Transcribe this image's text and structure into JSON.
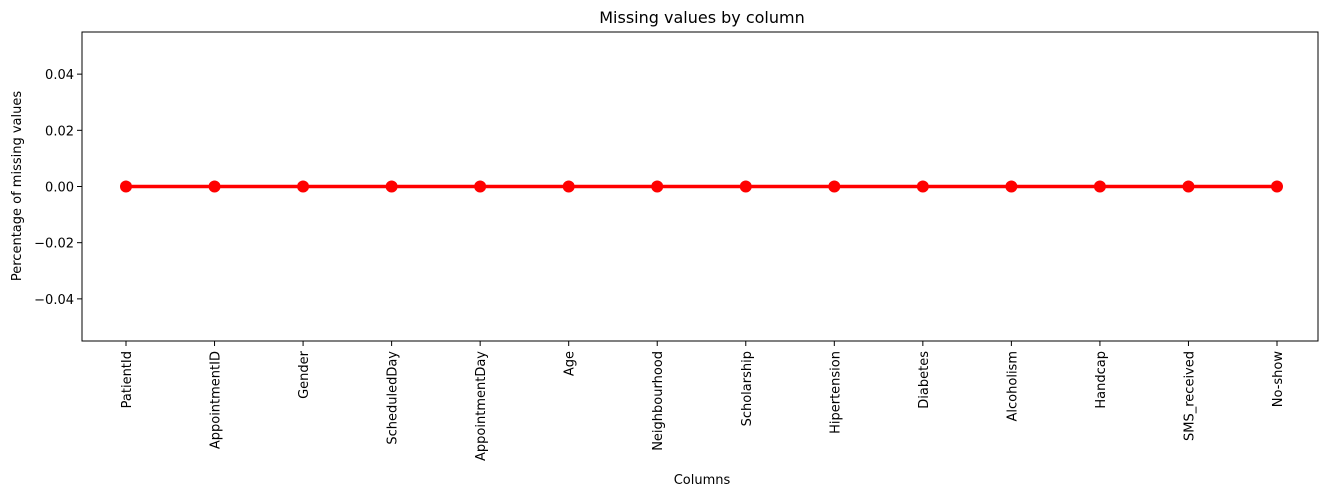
{
  "chart_data": {
    "type": "line",
    "title": "Missing values by column",
    "xlabel": "Columns",
    "ylabel": "Percentage of missing values",
    "categories": [
      "PatientId",
      "AppointmentID",
      "Gender",
      "ScheduledDay",
      "AppointmentDay",
      "Age",
      "Neighbourhood",
      "Scholarship",
      "Hipertension",
      "Diabetes",
      "Alcoholism",
      "Handcap",
      "SMS_received",
      "No-show"
    ],
    "series": [
      {
        "values": [
          0,
          0,
          0,
          0,
          0,
          0,
          0,
          0,
          0,
          0,
          0,
          0,
          0,
          0
        ],
        "color": "#ff0000"
      }
    ],
    "ylim": [
      -0.055,
      0.055
    ],
    "yticks": [
      -0.04,
      -0.02,
      0.0,
      0.02,
      0.04
    ],
    "ytick_labels": [
      "−0.04",
      "−0.02",
      "0.00",
      "0.02",
      "0.04"
    ],
    "grid": false,
    "legend": "none"
  }
}
